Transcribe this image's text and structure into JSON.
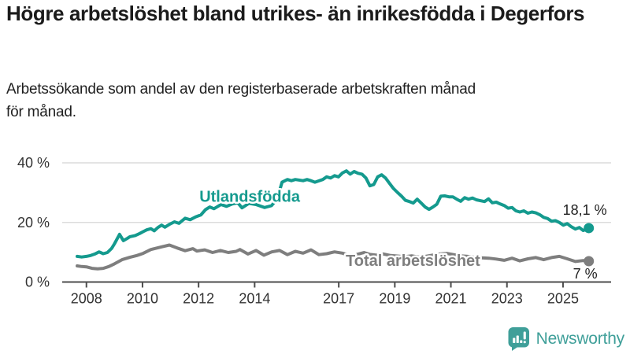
{
  "header": {
    "title": "Högre arbetslöshet bland utrikes- än inrikesfödda i Degerfors",
    "subtitle_lines": [
      "Arbetssökande som andel av den registerbaserade arbetskraften månad",
      "för månad."
    ]
  },
  "branding": {
    "logo_text": "Newsworthy",
    "logo_icon": "bar-chart-speech-bubble-icon",
    "logo_color": "#3f9f99"
  },
  "colors": {
    "foreign_born_line": "#149a8e",
    "total_line": "#7e7e7e",
    "gridline": "#dcdcdc",
    "axis": "#4d4d4d",
    "axis_text": "#333333",
    "value_label_text": "#222222"
  },
  "chart_data": {
    "type": "line",
    "title": "Högre arbetslöshet bland utrikes- än inrikesfödda i Degerfors",
    "subtitle": "Arbetssökande som andel av den registerbaserade arbetskraften månad för månad.",
    "grid": "horizontal-only",
    "legend_position": "inline-labels",
    "x_axis": {
      "range": [
        2007.67,
        2026.2
      ],
      "ticks": [
        {
          "v": 2008,
          "label": "2008"
        },
        {
          "v": 2010,
          "label": "2010"
        },
        {
          "v": 2012,
          "label": "2012"
        },
        {
          "v": 2014,
          "label": "2014"
        },
        {
          "v": 2017,
          "label": "2017"
        },
        {
          "v": 2019,
          "label": "2019"
        },
        {
          "v": 2021,
          "label": "2021"
        },
        {
          "v": 2023,
          "label": "2023"
        },
        {
          "v": 2025,
          "label": "2025"
        }
      ]
    },
    "y_axis": {
      "range": [
        0,
        43
      ],
      "unit": "%",
      "ticks": [
        {
          "v": 0,
          "label": "0 %"
        },
        {
          "v": 20,
          "label": "20 %"
        },
        {
          "v": 40,
          "label": "40 %"
        }
      ]
    },
    "series": [
      {
        "name": "Utlandsfödda",
        "color": "#149a8e",
        "end_label": "18,1 %",
        "end_value": 18.1,
        "label_at": {
          "x": 2012.03,
          "y": 26.9
        },
        "end_label_offset": [
          23,
          -17
        ],
        "points": [
          [
            2007.67,
            8.6
          ],
          [
            2007.83,
            8.4
          ],
          [
            2008.0,
            8.6
          ],
          [
            2008.15,
            8.9
          ],
          [
            2008.3,
            9.4
          ],
          [
            2008.45,
            10.1
          ],
          [
            2008.6,
            9.5
          ],
          [
            2008.75,
            9.9
          ],
          [
            2008.9,
            11.3
          ],
          [
            2009.0,
            12.8
          ],
          [
            2009.18,
            16.0
          ],
          [
            2009.32,
            13.9
          ],
          [
            2009.45,
            14.6
          ],
          [
            2009.55,
            15.2
          ],
          [
            2009.74,
            15.6
          ],
          [
            2009.9,
            16.3
          ],
          [
            2010.02,
            16.9
          ],
          [
            2010.15,
            17.5
          ],
          [
            2010.3,
            17.9
          ],
          [
            2010.42,
            17.2
          ],
          [
            2010.55,
            18.3
          ],
          [
            2010.68,
            19.1
          ],
          [
            2010.8,
            18.4
          ],
          [
            2010.95,
            19.3
          ],
          [
            2011.14,
            20.2
          ],
          [
            2011.3,
            19.7
          ],
          [
            2011.52,
            21.4
          ],
          [
            2011.7,
            20.9
          ],
          [
            2011.9,
            21.9
          ],
          [
            2012.08,
            22.5
          ],
          [
            2012.25,
            24.3
          ],
          [
            2012.4,
            25.2
          ],
          [
            2012.55,
            24.6
          ],
          [
            2012.8,
            26.0
          ],
          [
            2013.0,
            25.4
          ],
          [
            2013.2,
            26.2
          ],
          [
            2013.4,
            26.6
          ],
          [
            2013.55,
            24.9
          ],
          [
            2013.8,
            26.4
          ],
          [
            2014.05,
            26.0
          ],
          [
            2014.35,
            25.0
          ],
          [
            2014.6,
            25.6
          ],
          [
            2014.8,
            27.8
          ],
          [
            2014.98,
            33.5
          ],
          [
            2015.17,
            34.4
          ],
          [
            2015.31,
            34.0
          ],
          [
            2015.45,
            34.4
          ],
          [
            2015.73,
            34.0
          ],
          [
            2015.87,
            34.4
          ],
          [
            2016.01,
            34.0
          ],
          [
            2016.15,
            33.5
          ],
          [
            2016.43,
            34.4
          ],
          [
            2016.57,
            35.3
          ],
          [
            2016.71,
            34.9
          ],
          [
            2016.85,
            35.7
          ],
          [
            2016.99,
            35.3
          ],
          [
            2017.13,
            36.6
          ],
          [
            2017.27,
            37.3
          ],
          [
            2017.41,
            36.2
          ],
          [
            2017.55,
            37.1
          ],
          [
            2017.69,
            36.5
          ],
          [
            2017.83,
            36.2
          ],
          [
            2017.97,
            34.9
          ],
          [
            2018.11,
            32.3
          ],
          [
            2018.25,
            32.7
          ],
          [
            2018.39,
            35.3
          ],
          [
            2018.53,
            36.0
          ],
          [
            2018.67,
            34.9
          ],
          [
            2018.81,
            33.1
          ],
          [
            2018.95,
            31.4
          ],
          [
            2019.09,
            30.1
          ],
          [
            2019.24,
            28.8
          ],
          [
            2019.38,
            27.4
          ],
          [
            2019.52,
            27.0
          ],
          [
            2019.66,
            26.5
          ],
          [
            2019.8,
            27.8
          ],
          [
            2019.94,
            26.5
          ],
          [
            2020.08,
            25.2
          ],
          [
            2020.22,
            24.4
          ],
          [
            2020.36,
            25.2
          ],
          [
            2020.5,
            26.1
          ],
          [
            2020.64,
            28.8
          ],
          [
            2020.78,
            28.9
          ],
          [
            2020.93,
            28.6
          ],
          [
            2021.07,
            28.6
          ],
          [
            2021.21,
            27.8
          ],
          [
            2021.35,
            27.1
          ],
          [
            2021.49,
            28.3
          ],
          [
            2021.63,
            27.8
          ],
          [
            2021.77,
            28.2
          ],
          [
            2021.91,
            27.6
          ],
          [
            2022.05,
            27.3
          ],
          [
            2022.2,
            27.0
          ],
          [
            2022.34,
            27.9
          ],
          [
            2022.48,
            26.6
          ],
          [
            2022.62,
            26.8
          ],
          [
            2022.76,
            26.2
          ],
          [
            2022.9,
            25.7
          ],
          [
            2023.04,
            24.8
          ],
          [
            2023.18,
            25.0
          ],
          [
            2023.32,
            23.9
          ],
          [
            2023.46,
            23.5
          ],
          [
            2023.6,
            23.9
          ],
          [
            2023.75,
            23.1
          ],
          [
            2023.89,
            23.5
          ],
          [
            2024.03,
            23.2
          ],
          [
            2024.17,
            22.6
          ],
          [
            2024.31,
            21.7
          ],
          [
            2024.45,
            21.3
          ],
          [
            2024.59,
            20.4
          ],
          [
            2024.73,
            20.6
          ],
          [
            2024.87,
            20.0
          ],
          [
            2025.01,
            19.1
          ],
          [
            2025.15,
            19.6
          ],
          [
            2025.29,
            18.6
          ],
          [
            2025.44,
            17.8
          ],
          [
            2025.58,
            18.3
          ],
          [
            2025.72,
            17.3
          ],
          [
            2025.86,
            17.8
          ],
          [
            2025.92,
            18.1
          ]
        ]
      },
      {
        "name": "Total arbetslöshet",
        "color": "#7e7e7e",
        "end_label": "7 %",
        "end_value": 7,
        "label_at": {
          "x": 2017.25,
          "y": 5.4
        },
        "end_label_offset": [
          11,
          22
        ],
        "points": [
          [
            2007.67,
            5.4
          ],
          [
            2007.83,
            5.2
          ],
          [
            2008.0,
            5.1
          ],
          [
            2008.2,
            4.6
          ],
          [
            2008.4,
            4.4
          ],
          [
            2008.6,
            4.6
          ],
          [
            2008.8,
            5.2
          ],
          [
            2009.0,
            6.1
          ],
          [
            2009.27,
            7.5
          ],
          [
            2009.55,
            8.3
          ],
          [
            2009.8,
            8.9
          ],
          [
            2010.02,
            9.6
          ],
          [
            2010.3,
            10.9
          ],
          [
            2010.68,
            11.8
          ],
          [
            2010.96,
            12.4
          ],
          [
            2011.24,
            11.4
          ],
          [
            2011.52,
            10.5
          ],
          [
            2011.8,
            11.2
          ],
          [
            2011.94,
            10.4
          ],
          [
            2012.22,
            10.8
          ],
          [
            2012.5,
            9.9
          ],
          [
            2012.78,
            10.6
          ],
          [
            2013.06,
            9.9
          ],
          [
            2013.34,
            10.3
          ],
          [
            2013.48,
            10.9
          ],
          [
            2013.76,
            9.4
          ],
          [
            2014.05,
            10.6
          ],
          [
            2014.33,
            9.0
          ],
          [
            2014.61,
            10.1
          ],
          [
            2014.89,
            10.6
          ],
          [
            2015.17,
            9.2
          ],
          [
            2015.45,
            10.3
          ],
          [
            2015.73,
            9.7
          ],
          [
            2016.01,
            10.8
          ],
          [
            2016.29,
            9.2
          ],
          [
            2016.57,
            9.5
          ],
          [
            2016.85,
            10.1
          ],
          [
            2017.13,
            9.7
          ],
          [
            2017.3,
            9.2
          ],
          [
            2017.45,
            8.6
          ],
          [
            2017.7,
            9.4
          ],
          [
            2017.9,
            9.9
          ],
          [
            2018.1,
            9.3
          ],
          [
            2018.35,
            9.0
          ],
          [
            2018.6,
            9.4
          ],
          [
            2018.85,
            8.9
          ],
          [
            2019.1,
            8.7
          ],
          [
            2019.35,
            8.5
          ],
          [
            2019.6,
            8.8
          ],
          [
            2019.85,
            8.4
          ],
          [
            2020.1,
            8.6
          ],
          [
            2020.35,
            9.0
          ],
          [
            2020.6,
            9.4
          ],
          [
            2020.85,
            9.6
          ],
          [
            2021.1,
            9.2
          ],
          [
            2021.35,
            8.8
          ],
          [
            2021.6,
            8.6
          ],
          [
            2021.85,
            8.3
          ],
          [
            2022.1,
            8.1
          ],
          [
            2022.35,
            8.0
          ],
          [
            2022.62,
            7.7
          ],
          [
            2022.9,
            7.3
          ],
          [
            2023.18,
            8.0
          ],
          [
            2023.46,
            7.1
          ],
          [
            2023.75,
            7.8
          ],
          [
            2024.03,
            8.2
          ],
          [
            2024.31,
            7.5
          ],
          [
            2024.59,
            8.2
          ],
          [
            2024.87,
            8.6
          ],
          [
            2025.15,
            7.8
          ],
          [
            2025.44,
            6.9
          ],
          [
            2025.72,
            7.2
          ],
          [
            2025.92,
            7.0
          ]
        ]
      }
    ]
  }
}
